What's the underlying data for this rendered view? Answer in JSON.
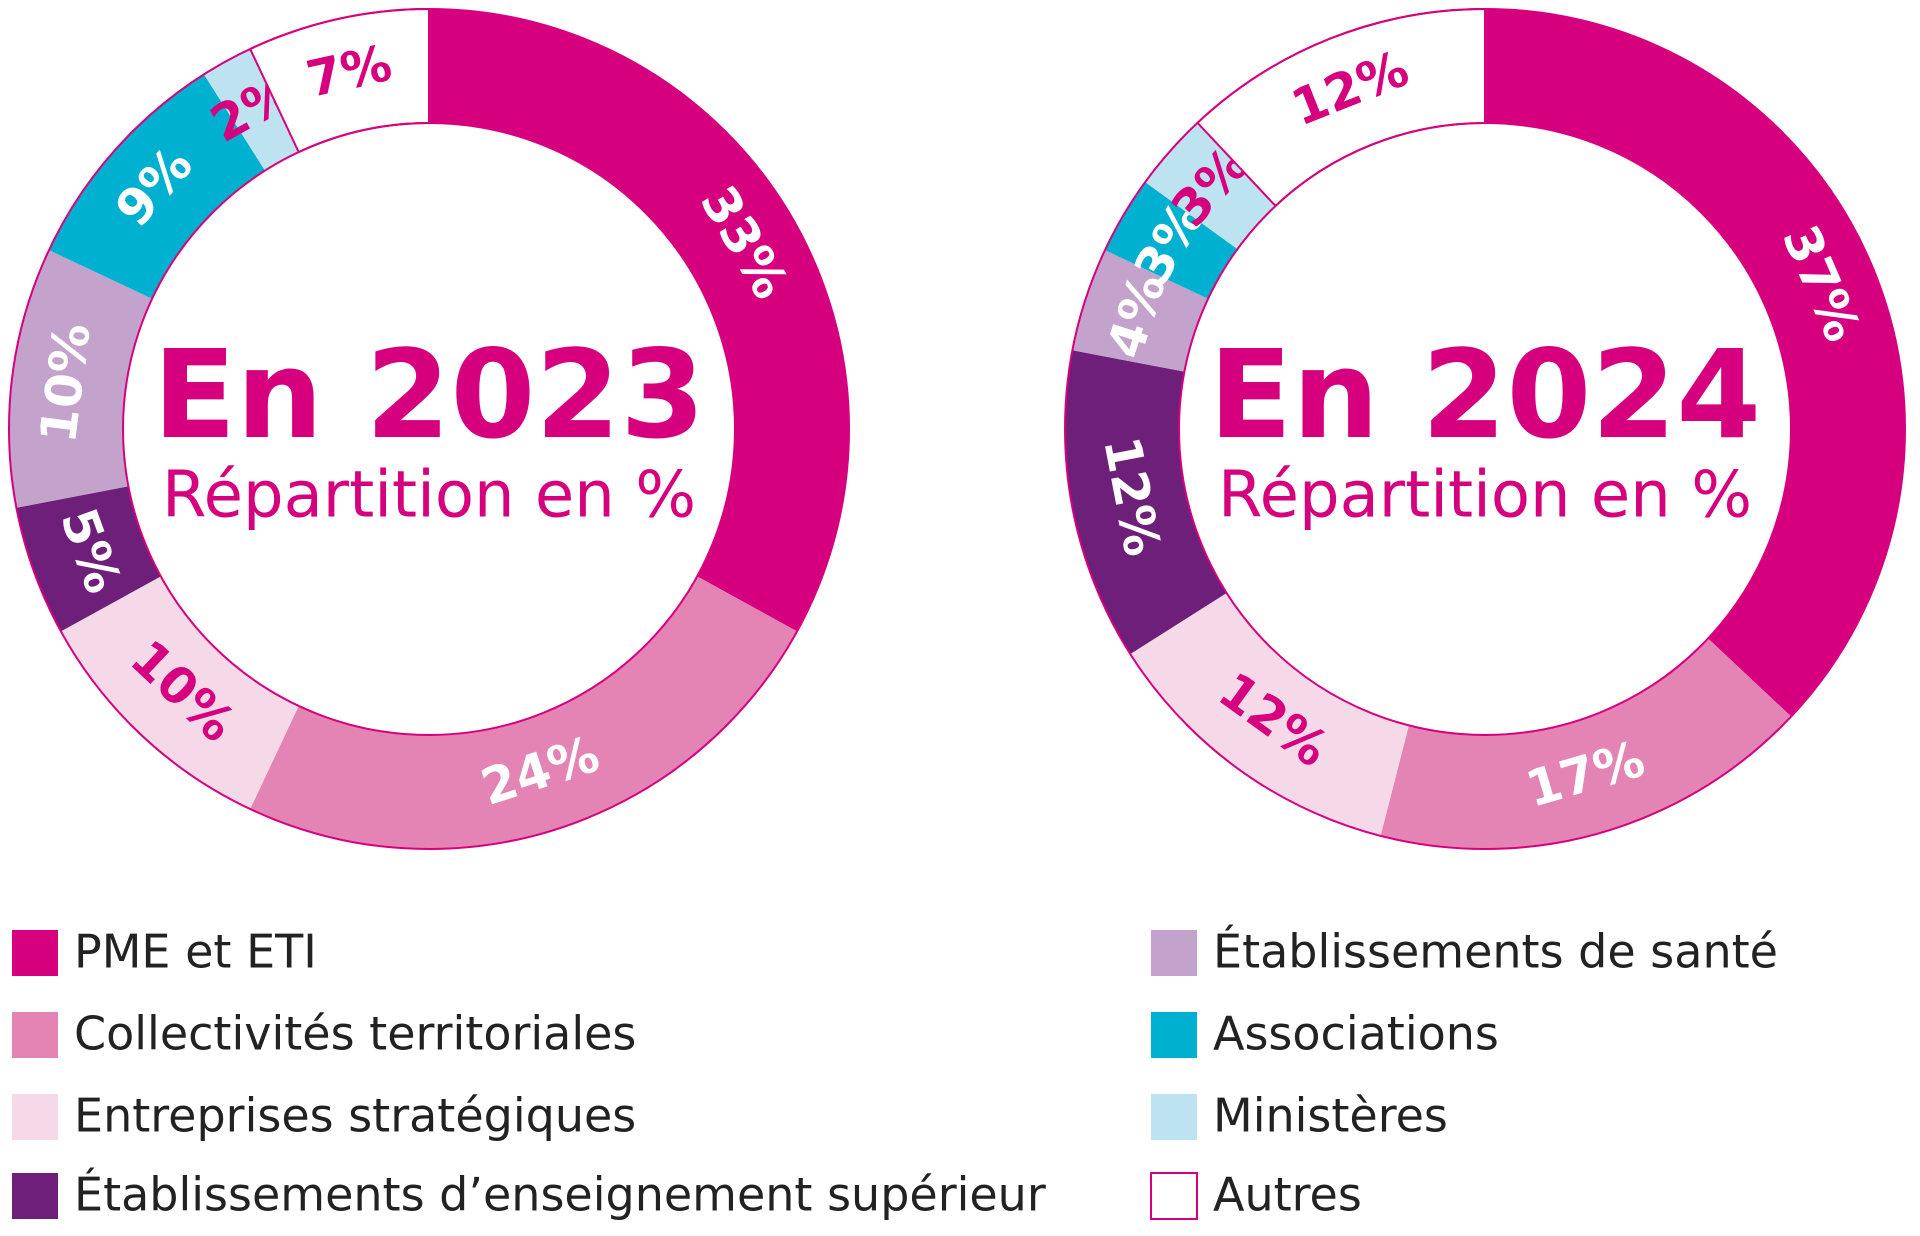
{
  "chart_data": [
    {
      "type": "pie",
      "title": "En 2023",
      "subtitle": "Répartition en %",
      "categories": [
        "PME et ETI",
        "Collectivités territoriales",
        "Entreprises stratégiques",
        "Établissements d’enseignement supérieur",
        "Établissements de santé",
        "Associations",
        "Ministères",
        "Autres"
      ],
      "values": [
        33,
        24,
        10,
        5,
        10,
        9,
        2,
        7
      ],
      "value_labels": [
        "33%",
        "24%",
        "10%",
        "5%",
        "10%",
        "9%",
        "2%",
        "7%"
      ],
      "colors": [
        "#d6007e",
        "#e384b4",
        "#f6d9e9",
        "#6d1f7a",
        "#c3a2cc",
        "#00b0d0",
        "#bde3f0",
        "#ffffff"
      ]
    },
    {
      "type": "pie",
      "title": "En 2024",
      "subtitle": "Répartition en %",
      "categories": [
        "PME et ETI",
        "Collectivités territoriales",
        "Entreprises stratégiques",
        "Établissements d’enseignement supérieur",
        "Établissements de santé",
        "Associations",
        "Ministères",
        "Autres"
      ],
      "values": [
        37,
        17,
        12,
        12,
        4,
        3,
        3,
        12
      ],
      "value_labels": [
        "37%",
        "17%",
        "12%",
        "12%",
        "4%",
        "3%",
        "3%",
        "12%"
      ],
      "colors": [
        "#d6007e",
        "#e384b4",
        "#f6d9e9",
        "#6d1f7a",
        "#c3a2cc",
        "#00b0d0",
        "#bde3f0",
        "#ffffff"
      ]
    }
  ]
}
